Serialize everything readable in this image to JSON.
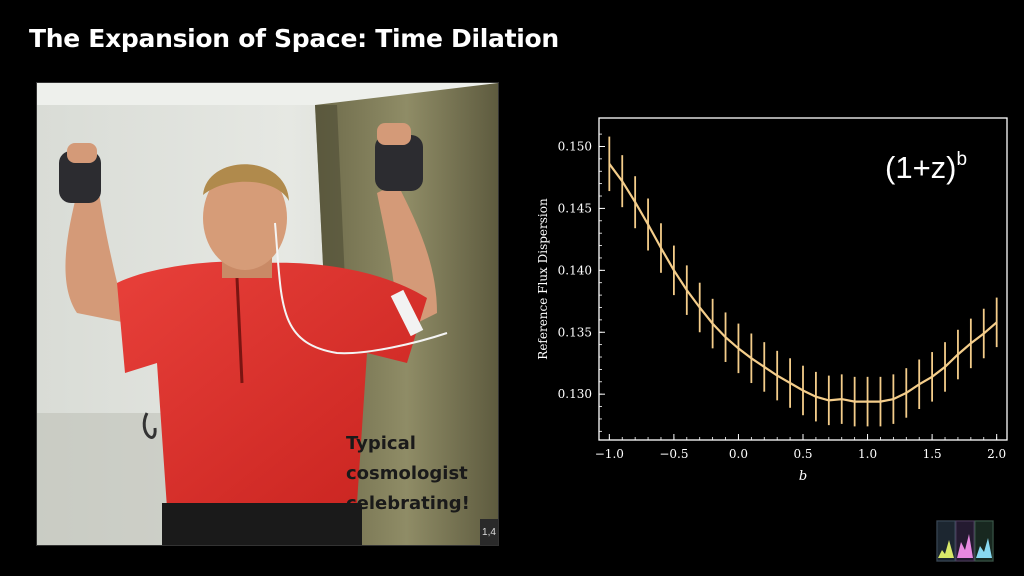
{
  "slide": {
    "title": "The Expansion of Space: Time Dilation"
  },
  "photo": {
    "caption_lines": [
      "Typical",
      "cosmologist",
      "celebrating!"
    ],
    "badge": "1,4"
  },
  "chart_data": {
    "type": "line",
    "title": "",
    "annotation": "(1+z)",
    "annotation_superscript": "b",
    "xlabel": "b",
    "ylabel": "Reference Flux Dispersion",
    "xlim": [
      -1.08,
      2.08
    ],
    "ylim": [
      0.1263,
      0.1523
    ],
    "xticks": [
      -1.0,
      -0.5,
      0.0,
      0.5,
      1.0,
      1.5,
      2.0
    ],
    "xtick_labels": [
      "−1.0",
      "−0.5",
      "0.0",
      "0.5",
      "1.0",
      "1.5",
      "2.0"
    ],
    "yticks": [
      0.13,
      0.135,
      0.14,
      0.145,
      0.15
    ],
    "ytick_labels": [
      "0.130",
      "0.135",
      "0.140",
      "0.145",
      "0.150"
    ],
    "grid": false,
    "line_color": "#f4cd8a",
    "series": [
      {
        "x": [
          -1.0,
          -0.9,
          -0.8,
          -0.7,
          -0.6,
          -0.5,
          -0.4,
          -0.3,
          -0.2,
          -0.1,
          0.0,
          0.1,
          0.2,
          0.3,
          0.4,
          0.5,
          0.6,
          0.7,
          0.8,
          0.9,
          1.0,
          1.1,
          1.2,
          1.3,
          1.4,
          1.5,
          1.6,
          1.7,
          1.8,
          1.9,
          2.0
        ],
        "y": [
          0.1486,
          0.1472,
          0.1455,
          0.1437,
          0.1418,
          0.14,
          0.1384,
          0.137,
          0.1357,
          0.1346,
          0.1337,
          0.1329,
          0.1322,
          0.1315,
          0.1309,
          0.1303,
          0.1298,
          0.1295,
          0.1296,
          0.1294,
          0.1294,
          0.1294,
          0.1296,
          0.1301,
          0.1308,
          0.1314,
          0.1322,
          0.1332,
          0.1341,
          0.1349,
          0.1358
        ],
        "yerr": [
          0.0022,
          0.0021,
          0.0021,
          0.0021,
          0.002,
          0.002,
          0.002,
          0.002,
          0.002,
          0.002,
          0.002,
          0.002,
          0.002,
          0.002,
          0.002,
          0.002,
          0.002,
          0.002,
          0.002,
          0.002,
          0.002,
          0.002,
          0.002,
          0.002,
          0.002,
          0.002,
          0.002,
          0.002,
          0.002,
          0.002,
          0.002
        ]
      }
    ]
  }
}
